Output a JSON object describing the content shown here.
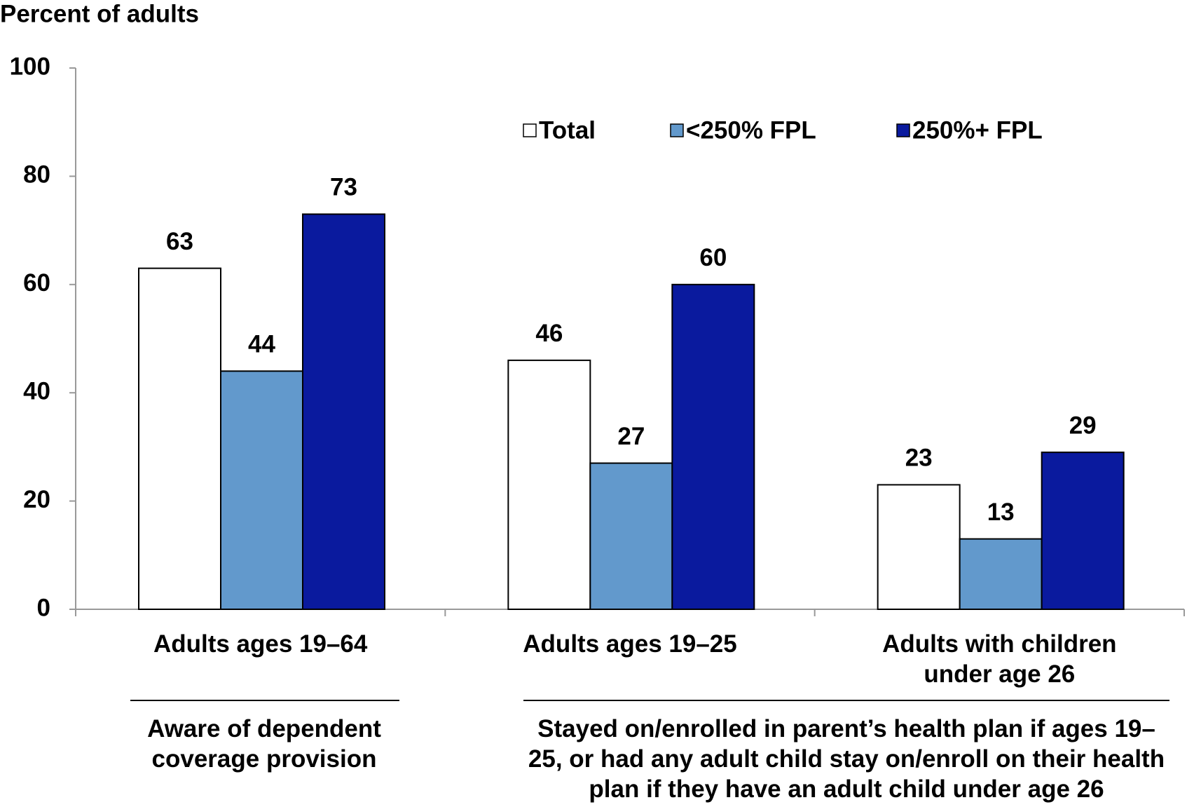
{
  "chart_data": {
    "type": "bar",
    "y_axis_label": "Percent of adults",
    "categories": [
      "Adults ages 19–64",
      "Adults ages 19–25",
      "Adults with children under age 26"
    ],
    "series": [
      {
        "name": "Total",
        "color": "#ffffff",
        "values": [
          63,
          46,
          23
        ]
      },
      {
        "name": "<250% FPL",
        "color": "#6299cc",
        "values": [
          44,
          27,
          13
        ]
      },
      {
        "name": "250%+ FPL",
        "color": "#0a1a9e",
        "values": [
          73,
          60,
          29
        ]
      }
    ],
    "ylim": [
      0,
      100
    ],
    "yticks": [
      0,
      20,
      40,
      60,
      80,
      100
    ],
    "annotations": [
      "Aware of dependent coverage provision",
      "Stayed on/enrolled in parent’s health plan if ages 19–25, or had any adult child stay on/enroll on their health plan if they have an adult child under age 26"
    ]
  }
}
